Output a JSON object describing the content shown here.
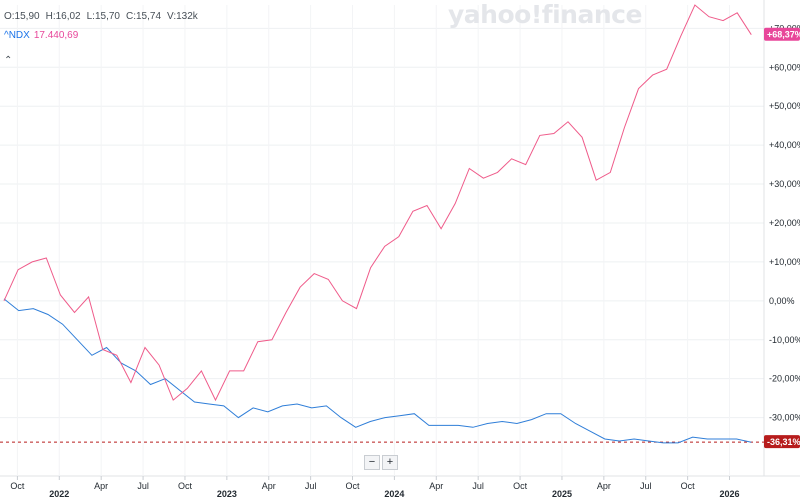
{
  "watermark": "yahoo!finance",
  "ohlc": {
    "open": "O:15,90",
    "high": "H:16,02",
    "low": "L:15,70",
    "close": "C:15,74",
    "volume": "V:132k"
  },
  "compare": {
    "symbol": "^NDX",
    "value": "17.440,69"
  },
  "collapse_icon": "chevron-up-icon",
  "zoom": {
    "minus": "−",
    "plus": "+"
  },
  "chart_data": {
    "type": "line",
    "ylim": [
      -45,
      76
    ],
    "y_ticks": [
      -30,
      -20,
      -10,
      0,
      10,
      20,
      30,
      40,
      50,
      60,
      70
    ],
    "y_tick_labels": [
      "-30,00%",
      "-20,00%",
      "-10,00%",
      "0,00%",
      "+10,00%",
      "+20,00%",
      "+30,00%",
      "+40,00%",
      "+50,00%",
      "+60,00%",
      "+70,00%"
    ],
    "x_tick_labels": [
      {
        "t": 0.08,
        "label": "Oct"
      },
      {
        "t": 0.33,
        "label": "2022",
        "year": true
      },
      {
        "t": 0.58,
        "label": "Apr"
      },
      {
        "t": 0.83,
        "label": "Jul"
      },
      {
        "t": 1.08,
        "label": "Oct"
      },
      {
        "t": 1.33,
        "label": "2023",
        "year": true
      },
      {
        "t": 1.58,
        "label": "Apr"
      },
      {
        "t": 1.83,
        "label": "Jul"
      },
      {
        "t": 2.08,
        "label": "Oct"
      },
      {
        "t": 2.33,
        "label": "2024",
        "year": true
      },
      {
        "t": 2.58,
        "label": "Apr"
      },
      {
        "t": 2.83,
        "label": "Jul"
      },
      {
        "t": 3.08,
        "label": "Oct"
      },
      {
        "t": 3.33,
        "label": "2025",
        "year": true
      },
      {
        "t": 3.58,
        "label": "Apr"
      },
      {
        "t": 3.83,
        "label": "Jul"
      },
      {
        "t": 4.08,
        "label": "Oct"
      },
      {
        "t": 4.33,
        "label": "2026",
        "year": true
      }
    ],
    "x_range": [
      0,
      4.5
    ],
    "reference_value": -36.31,
    "series": [
      {
        "name": "",
        "color": "#2f7ed8",
        "badge": "-36,31%",
        "badge_color": "#b71c1c",
        "values": [
          0.5,
          -2.5,
          -2,
          -3.5,
          -6,
          -10,
          -14,
          -12,
          -16,
          -18,
          -21.5,
          -20,
          -23,
          -26,
          -26.5,
          -27,
          -30,
          -27.5,
          -28.5,
          -27,
          -26.5,
          -27.5,
          -27,
          -30,
          -32.5,
          -31,
          -30,
          -29.5,
          -29,
          -32,
          -32,
          -32,
          -32.5,
          -31.5,
          -31,
          -31.5,
          -30.5,
          -29,
          -29,
          -31.5,
          -33.5,
          -35.5,
          -36,
          -35.5,
          -36,
          -36.5,
          -36.5,
          -35,
          -35.5,
          -35.5,
          -35.5,
          -36.31
        ]
      },
      {
        "name": "^NDX",
        "color": "#ef5b8a",
        "badge": "+68,37%",
        "badge_color": "#e8479a",
        "values": [
          0,
          8,
          10,
          11,
          1.5,
          -3,
          1,
          -12.5,
          -14,
          -21,
          -12,
          -16.5,
          -25.5,
          -22.5,
          -18,
          -25.5,
          -18,
          -18,
          -10.5,
          -10,
          -3,
          3.5,
          7,
          5.5,
          0,
          -2,
          8.5,
          14,
          16.5,
          23,
          24.5,
          18.5,
          25,
          34,
          31.5,
          33,
          36.5,
          35,
          42.5,
          43,
          46,
          42,
          31,
          33,
          44.5,
          54.5,
          58,
          59.5,
          68,
          76,
          73,
          72,
          74,
          68.37
        ]
      }
    ]
  }
}
